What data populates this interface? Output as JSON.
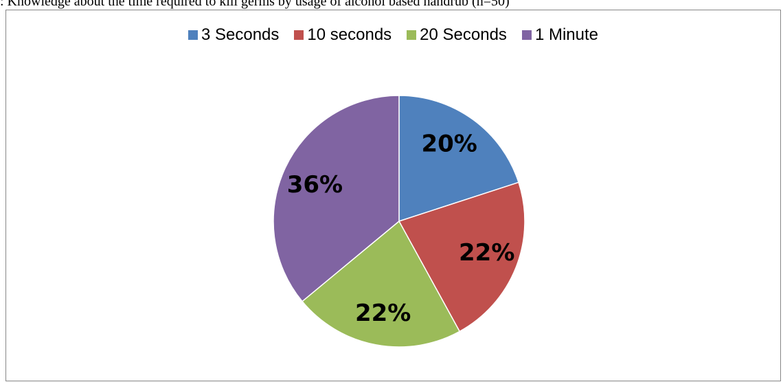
{
  "caption": ": Knowledge about the time required to kill germs by usage of alcohol based handrub (n=50)",
  "chart_data": {
    "type": "pie",
    "categories": [
      "3 Seconds",
      "10 seconds",
      "20 Seconds",
      "1 Minute"
    ],
    "values": [
      20,
      22,
      22,
      36
    ],
    "labels": [
      "20%",
      "22%",
      "22%",
      "36%"
    ],
    "colors": [
      "#4F81BD",
      "#C0504D",
      "#9BBB59",
      "#8064A2"
    ],
    "legend_position": "top",
    "start_angle": "12 o'clock",
    "direction": "clockwise"
  }
}
